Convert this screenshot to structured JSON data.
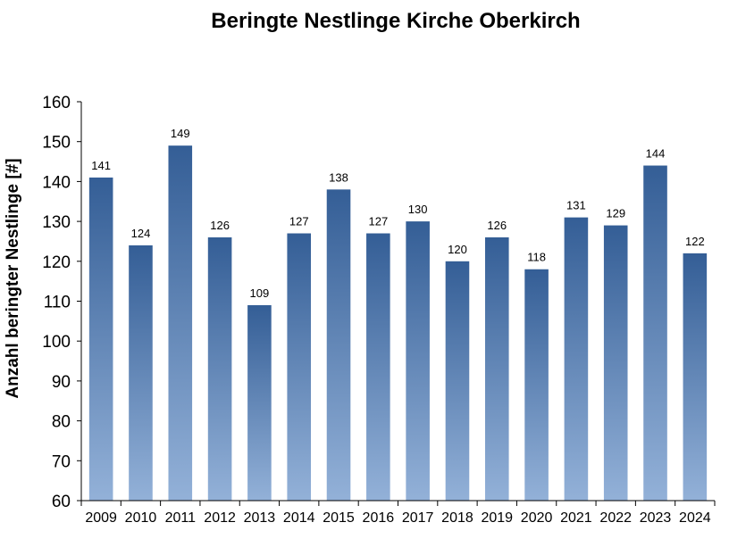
{
  "chart_data": {
    "type": "bar",
    "title": "Beringte Nestlinge Kirche Oberkirch",
    "xlabel": "",
    "ylabel": "Anzahl beringter Nestlinge  [#]",
    "categories": [
      "2009",
      "2010",
      "2011",
      "2012",
      "2013",
      "2014",
      "2015",
      "2016",
      "2017",
      "2018",
      "2019",
      "2020",
      "2021",
      "2022",
      "2023",
      "2024"
    ],
    "values": [
      141,
      124,
      149,
      126,
      109,
      127,
      138,
      127,
      130,
      120,
      126,
      118,
      131,
      129,
      144,
      122
    ],
    "ylim": [
      60,
      160
    ],
    "yticks": [
      60,
      70,
      80,
      90,
      100,
      110,
      120,
      130,
      140,
      150,
      160
    ],
    "grid": false,
    "legend": "none",
    "bar_color_top": "#345e96",
    "bar_color_bottom": "#93b1d8"
  }
}
